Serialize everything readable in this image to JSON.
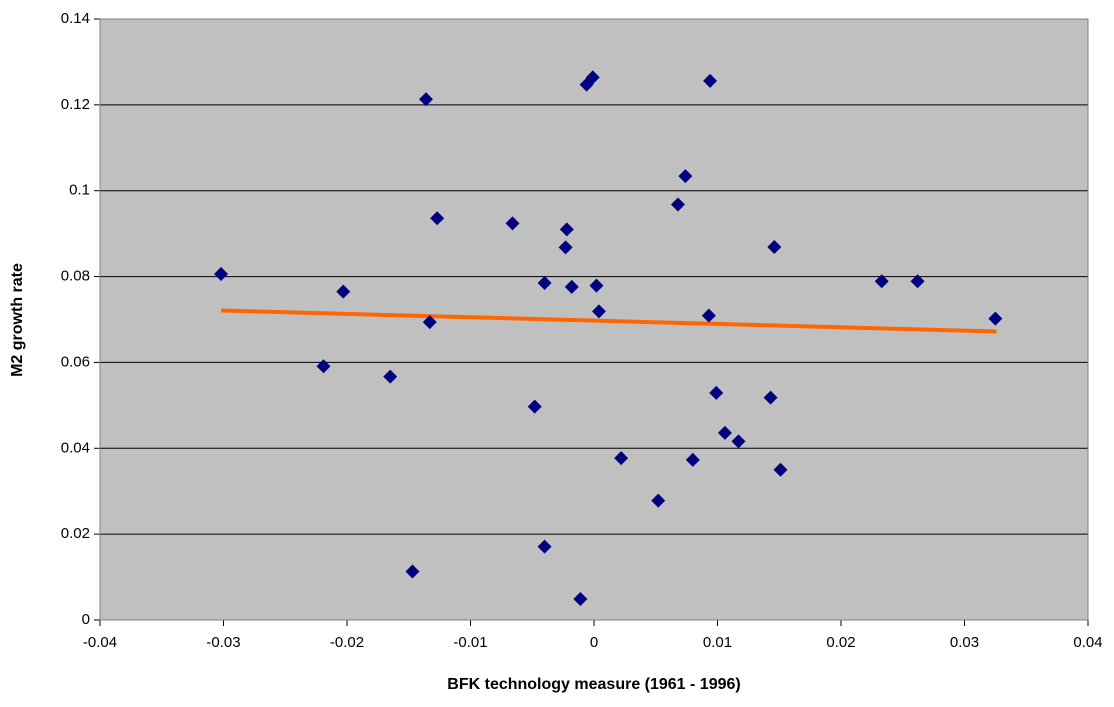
{
  "chart_data": {
    "type": "scatter",
    "x_label": "BFK technology measure (1961 - 1996)",
    "y_label": "M2 growth rate",
    "xlim": [
      -0.04,
      0.04
    ],
    "xticks": [
      -0.04,
      -0.03,
      -0.02,
      -0.01,
      0,
      0.01,
      0.02,
      0.03,
      0.04
    ],
    "ylim": [
      0,
      0.14
    ],
    "yticks": [
      0,
      0.02,
      0.04,
      0.06,
      0.08,
      0.1,
      0.12,
      0.14
    ],
    "grid": true,
    "background": "#c0c0c0",
    "series": [
      {
        "color": "#000080",
        "x": [
          -0.0302,
          -0.0219,
          -0.0203,
          -0.0165,
          -0.0147,
          -0.0136,
          -0.0133,
          -0.0127,
          -0.0066,
          -0.0048,
          -0.004,
          -0.004,
          -0.0023,
          -0.0022,
          -0.0018,
          -0.0011,
          -0.0006,
          -0.0001,
          0.0002,
          0.0004,
          0.0022,
          0.0052,
          0.0068,
          0.0074,
          0.008,
          0.0093,
          0.0094,
          0.0099,
          0.0106,
          0.0117,
          0.0143,
          0.0146,
          0.0151,
          0.0233,
          0.0262,
          0.0325
        ],
        "values": [
          0.0806,
          0.0591,
          0.0765,
          0.0567,
          0.0113,
          0.1213,
          0.0694,
          0.0936,
          0.0924,
          0.0497,
          0.0785,
          0.0171,
          0.0868,
          0.091,
          0.0776,
          0.0049,
          0.1247,
          0.1264,
          0.0779,
          0.0719,
          0.0377,
          0.0278,
          0.0968,
          0.1034,
          0.0373,
          0.0709,
          0.1256,
          0.0529,
          0.0436,
          0.0416,
          0.0518,
          0.0869,
          0.035,
          0.0789,
          0.0789,
          0.0702
        ]
      }
    ],
    "trendline": {
      "color": "#ff6600",
      "x": [
        -0.0302,
        0.0326
      ],
      "values": [
        0.0721,
        0.0672
      ]
    }
  }
}
